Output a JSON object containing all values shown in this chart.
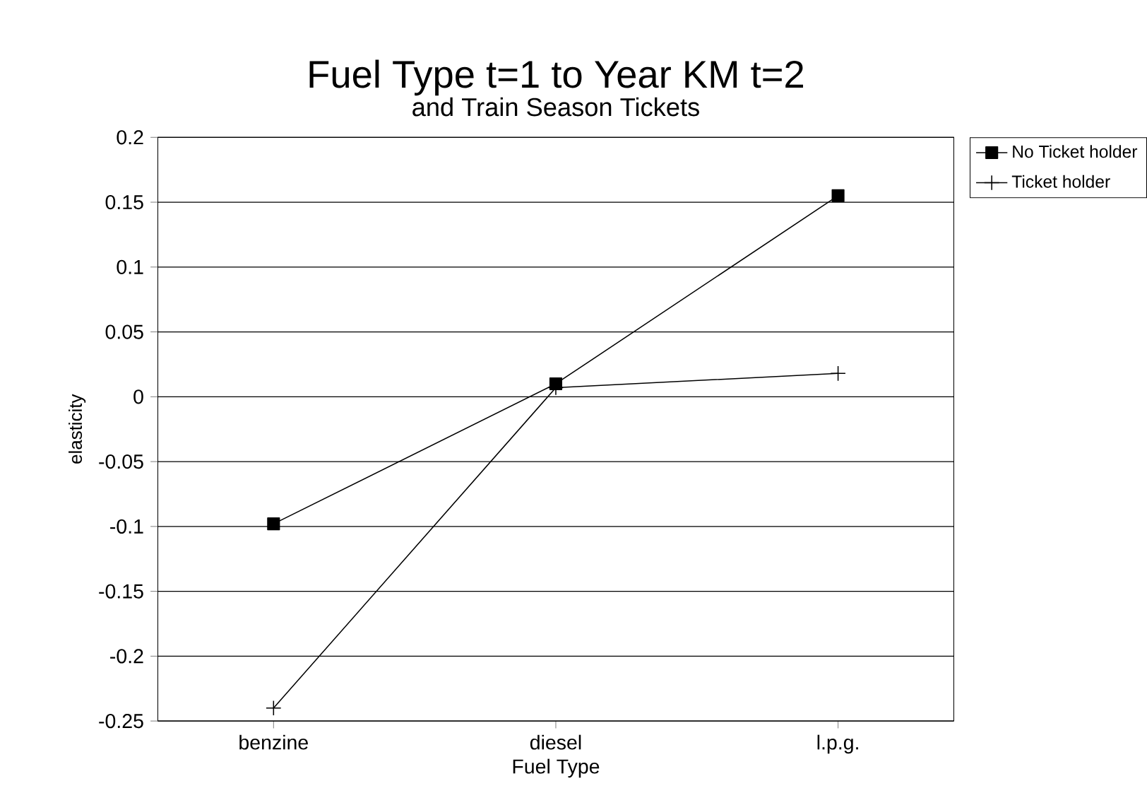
{
  "chart_data": {
    "type": "line",
    "title": "Fuel Type t=1 to Year KM t=2",
    "subtitle": "and Train Season Tickets",
    "xlabel": "Fuel Type",
    "ylabel": "elasticity",
    "categories": [
      "benzine",
      "diesel",
      "l.p.g."
    ],
    "series": [
      {
        "name": "No Ticket holder",
        "color": "#000000",
        "marker": "square",
        "values": [
          -0.098,
          0.01,
          0.155
        ]
      },
      {
        "name": "Ticket holder",
        "color": "#000000",
        "marker": "cross",
        "values": [
          -0.24,
          0.007,
          0.018
        ]
      }
    ],
    "ylim": [
      -0.25,
      0.2
    ],
    "yticks": [
      -0.25,
      -0.2,
      -0.15,
      -0.1,
      -0.05,
      0,
      0.05,
      0.1,
      0.15,
      0.2
    ],
    "grid": "y",
    "legend": "top right",
    "line_style": "solid"
  }
}
